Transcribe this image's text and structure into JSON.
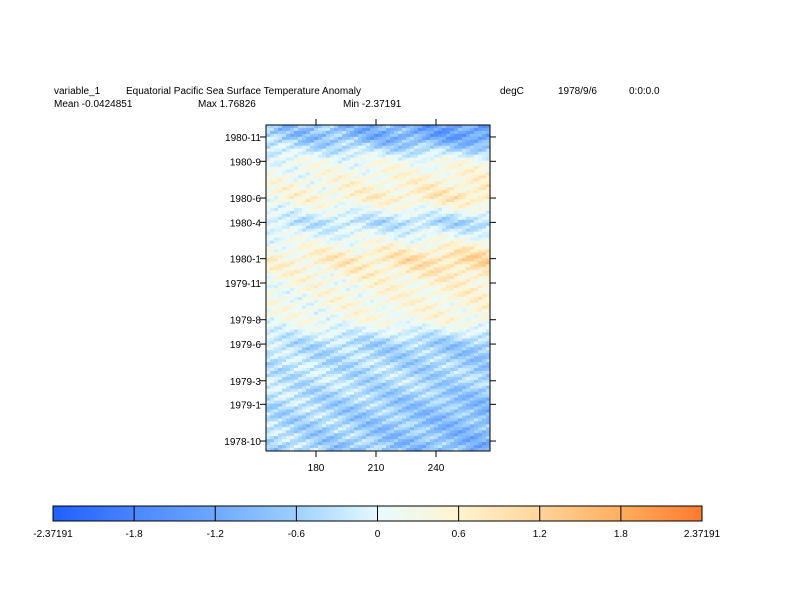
{
  "header": {
    "variable": "variable_1",
    "title": "Equatorial Pacific Sea Surface Temperature Anomaly",
    "units": "degC",
    "date": "1978/9/6",
    "time": "0:0:0.0",
    "mean": "Mean -0.0424851",
    "max": "Max 1.76826",
    "min": "Min -2.37191"
  },
  "chart_data": {
    "type": "heatmap",
    "title": "Equatorial Pacific Sea Surface Temperature Anomaly",
    "units": "degC",
    "x_ticks": [
      180,
      210,
      240
    ],
    "xlim": [
      155,
      267
    ],
    "y_ticks": [
      "1978-10",
      "1979-1",
      "1979-3",
      "1979-6",
      "1979-8",
      "1979-11",
      "1980-1",
      "1980-4",
      "1980-6",
      "1980-9",
      "1980-11"
    ],
    "ylim": [
      "1978-09-06",
      "1980-12-01"
    ],
    "value_range": [
      -2.37191,
      2.37191
    ],
    "colorbar_ticks": [
      "-2.37191",
      "-1.8",
      "-1.2",
      "-0.6",
      "0",
      "0.6",
      "1.2",
      "1.8",
      "2.37191"
    ],
    "colorbar_values": [
      -2.37191,
      -1.8,
      -1.2,
      -0.6,
      0,
      0.6,
      1.2,
      1.8,
      2.37191
    ],
    "colorbar_colors": [
      "#1e5fff",
      "#4a86ff",
      "#6ea8ff",
      "#9dd0ff",
      "#e6fbff",
      "#fff4d0",
      "#ffd49a",
      "#ffae5e",
      "#ff7a2e",
      "#ff3a10"
    ],
    "anomaly_profile": [
      {
        "date": "1978-10",
        "value": -0.7
      },
      {
        "date": "1979-1",
        "value": -0.6
      },
      {
        "date": "1979-3",
        "value": -0.4
      },
      {
        "date": "1979-6",
        "value": -0.5
      },
      {
        "date": "1979-8",
        "value": 0.3
      },
      {
        "date": "1979-11",
        "value": 0.4
      },
      {
        "date": "1980-1",
        "value": 0.8
      },
      {
        "date": "1980-4",
        "value": -0.4
      },
      {
        "date": "1980-6",
        "value": 0.6
      },
      {
        "date": "1980-9",
        "value": 0.2
      },
      {
        "date": "1980-11",
        "value": -1.0
      }
    ]
  }
}
